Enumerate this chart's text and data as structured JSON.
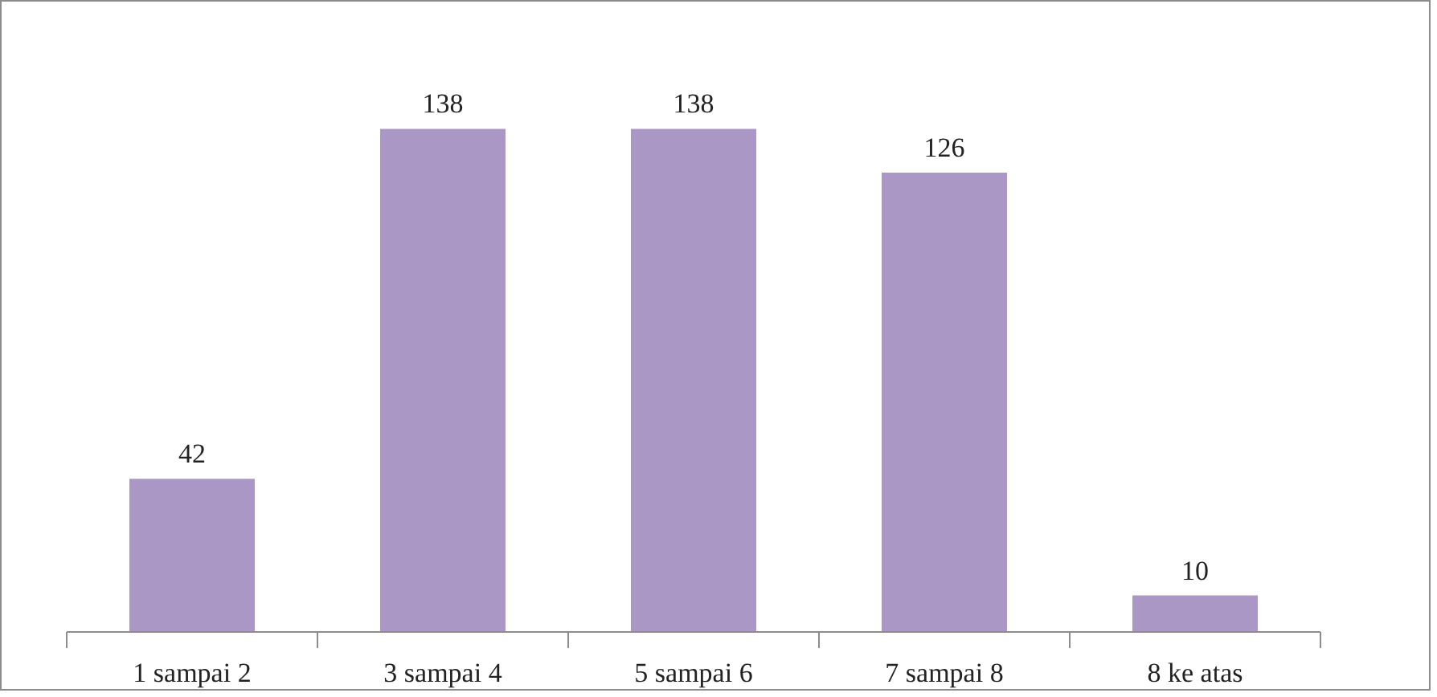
{
  "chart_data": {
    "type": "bar",
    "categories": [
      "1 sampai 2",
      "3 sampai 4",
      "5 sampai 6",
      "7 sampai 8",
      "8 ke atas"
    ],
    "values": [
      42,
      138,
      138,
      126,
      10
    ],
    "color": "#aa97c5",
    "data_labels": true
  }
}
